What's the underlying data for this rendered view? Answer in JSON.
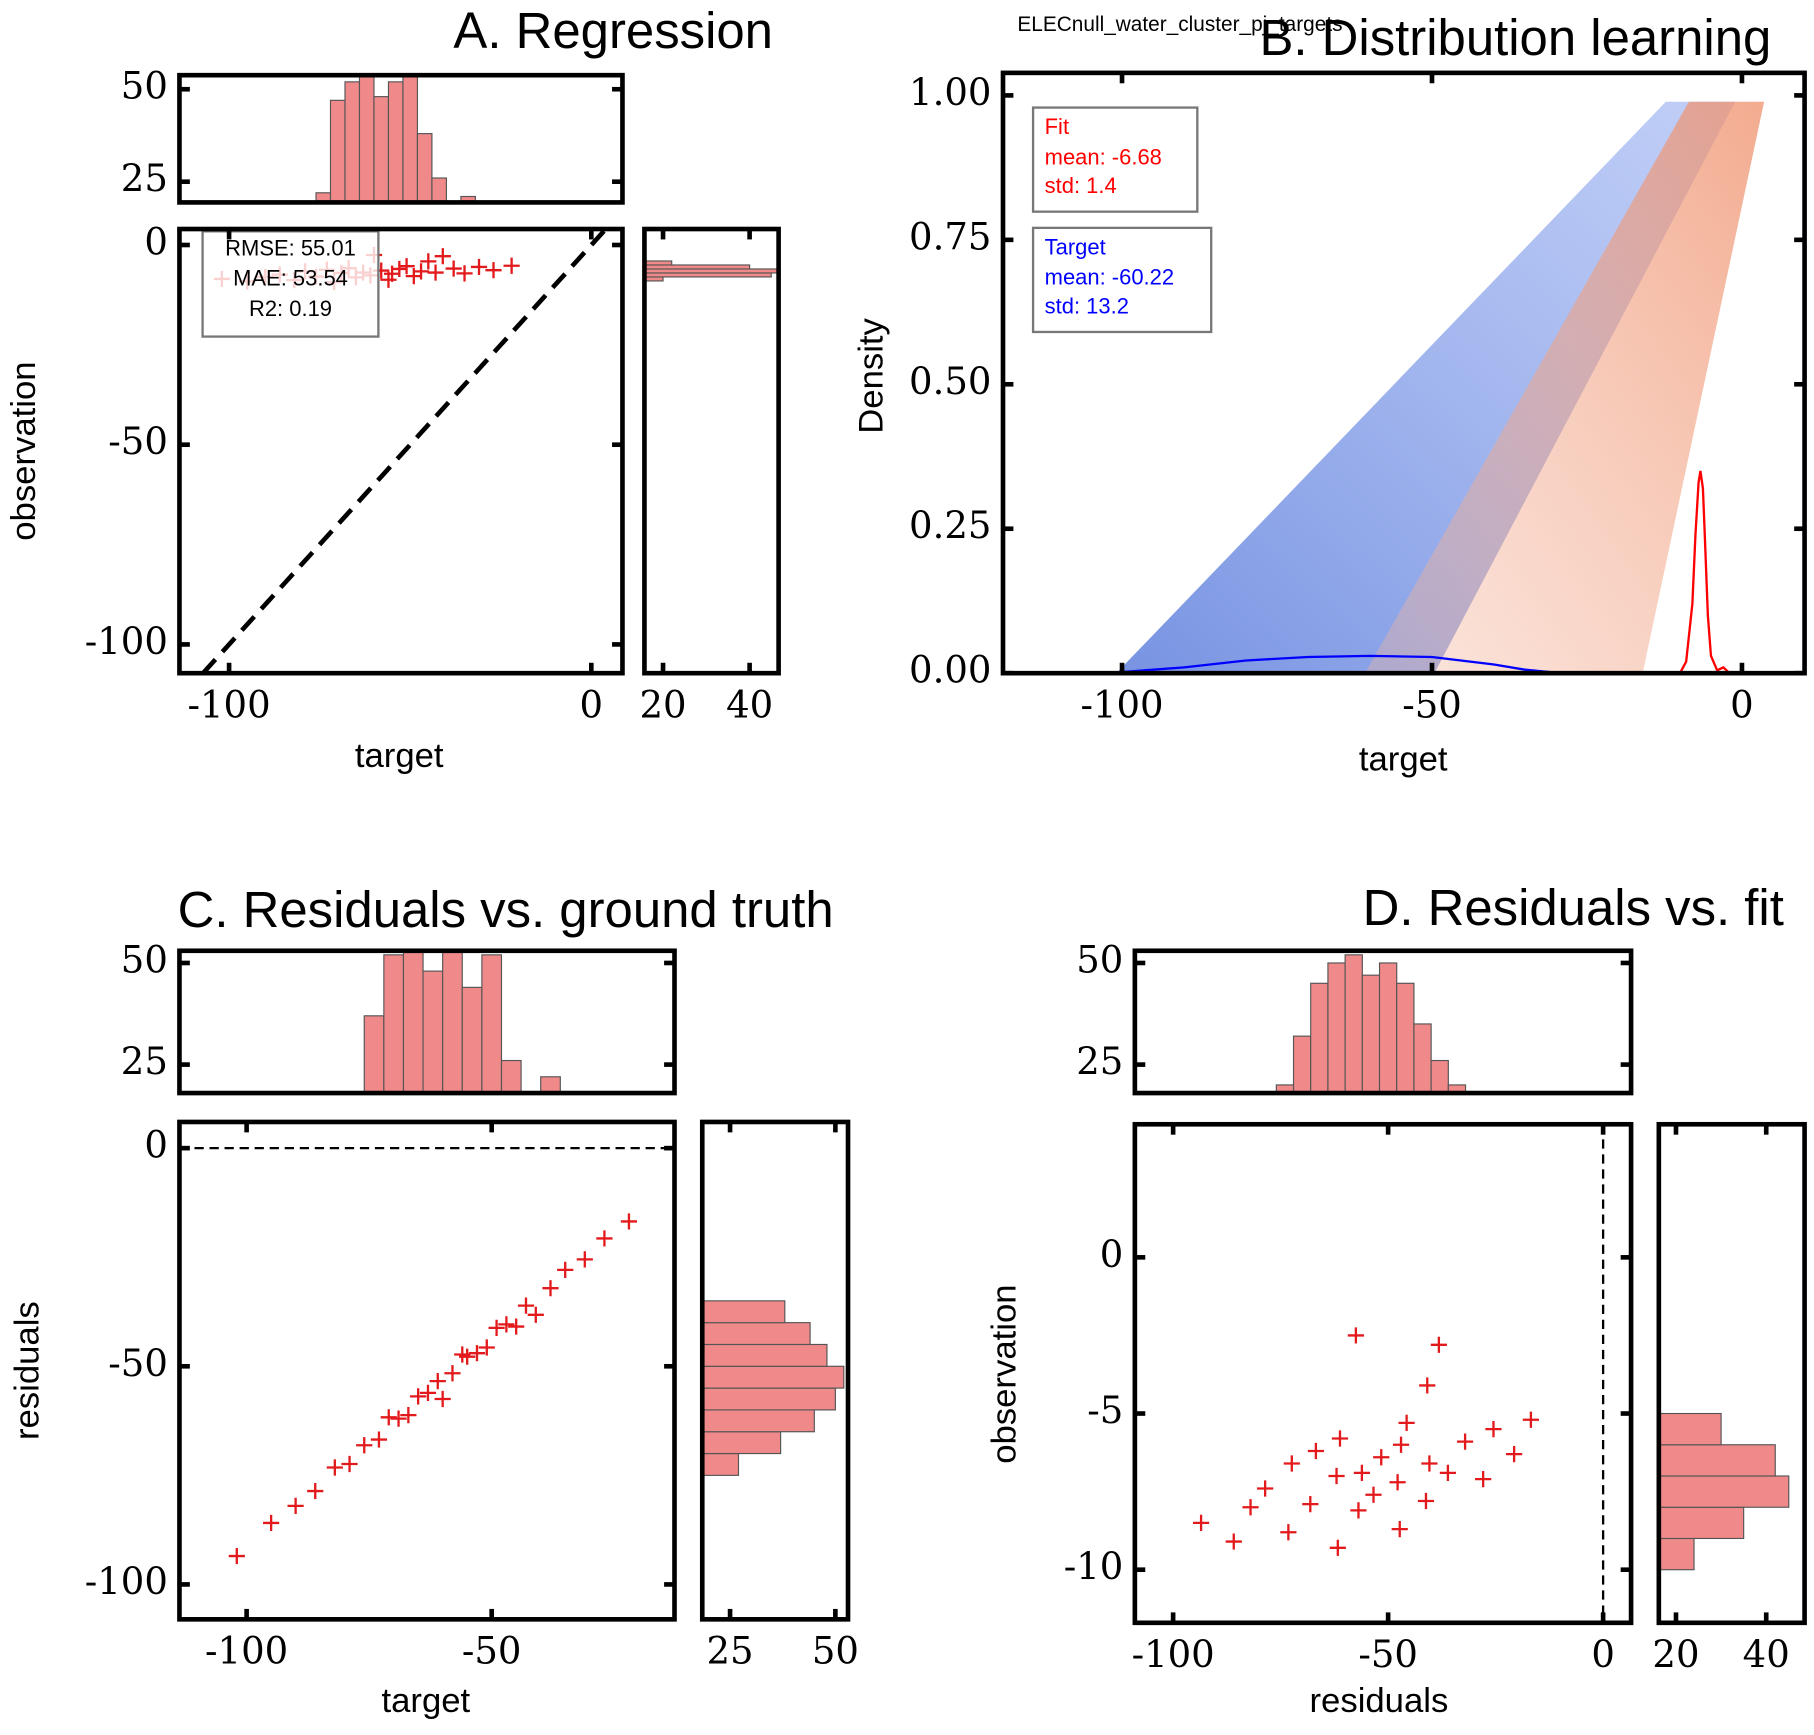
{
  "suptitle": "ELECnull_water_cluster_pj_targets",
  "chart_data": [
    {
      "type": "scatter",
      "title": "A. Regression",
      "xlabel": "target",
      "ylabel": "observation",
      "xlim": [
        -113.7,
        8.6
      ],
      "ylim": [
        -107.2,
        4
      ],
      "xticks": [
        -100,
        0
      ],
      "yticks": [
        -100,
        -50,
        0
      ],
      "color": "#e31a1c",
      "hist_color": "#f08a8a",
      "reference_line": "identity",
      "annotation": [
        "RMSE: 55.01",
        "MAE: 53.54",
        "R2: 0.19"
      ],
      "x": [
        -102,
        -95,
        -90,
        -86,
        -82,
        -79,
        -76,
        -73,
        -71,
        -69,
        -67,
        -65,
        -63,
        -61,
        -60,
        -58,
        -56,
        -55,
        -53,
        -51,
        -49,
        -47,
        -45,
        -43,
        -41,
        -38,
        -35,
        -31,
        -27,
        -22
      ],
      "y": [
        -8.5,
        -9.1,
        -8.0,
        -7.4,
        -8.8,
        -6.6,
        -7.9,
        -6.2,
        -9.3,
        -7.0,
        -5.8,
        -8.1,
        -6.9,
        -7.6,
        -2.5,
        -6.4,
        -8.7,
        -7.2,
        -6.0,
        -5.3,
        -7.8,
        -6.6,
        -4.1,
        -6.9,
        -2.8,
        -5.9,
        -7.1,
        -5.5,
        -6.3,
        -5.2
      ],
      "top_hist": {
        "bins": [
          -76,
          -72,
          -68,
          -64,
          -60,
          -56,
          -52,
          -48,
          -44,
          -40,
          -36,
          -32
        ],
        "counts": [
          22,
          47,
          52,
          55,
          48,
          52,
          55,
          38,
          26,
          17,
          21
        ],
        "ylim": [
          19.4,
          53.8
        ],
        "yticks": [
          25,
          50
        ]
      },
      "right_hist": {
        "bins": [
          -9,
          -8,
          -7,
          -6,
          -5,
          -4
        ],
        "counts": [
          20,
          45,
          50,
          40,
          22
        ],
        "xlim": [
          15.7,
          46.7
        ],
        "xticks": [
          20,
          40
        ]
      }
    },
    {
      "type": "line",
      "title": "B. Distribution learning",
      "xlabel": "target",
      "ylabel": "Density",
      "xlim": [
        -119.2,
        10.1
      ],
      "ylim": [
        0,
        1.039
      ],
      "xticks": [
        -100,
        -50,
        0
      ],
      "yticks": [
        {
          "value": 0,
          "label": "0.00"
        },
        {
          "value": 0.25,
          "label": "0.25"
        },
        {
          "value": 0.5,
          "label": "0.50"
        },
        {
          "value": 0.75,
          "label": "0.75"
        },
        {
          "value": 1,
          "label": "1.00"
        }
      ],
      "series": [
        {
          "name": "Fit",
          "color": "#ff0000",
          "stats": [
            "mean: -6.68",
            "std: 1.4"
          ],
          "x": [
            -10,
            -9,
            -8,
            -7.5,
            -7,
            -6.7,
            -6.3,
            -6,
            -5.5,
            -5,
            -4,
            -3,
            -2
          ],
          "values": [
            0,
            0.02,
            0.12,
            0.24,
            0.33,
            0.35,
            0.32,
            0.24,
            0.1,
            0.03,
            0.005,
            0.01,
            0
          ]
        },
        {
          "name": "Target",
          "color": "#0000ff",
          "stats": [
            "mean: -60.22",
            "std: 13.2"
          ],
          "x": [
            -100,
            -90,
            -80,
            -70,
            -60,
            -50,
            -40,
            -35,
            -30
          ],
          "values": [
            0.002,
            0.01,
            0.022,
            0.028,
            0.03,
            0.028,
            0.015,
            0.006,
            0.001
          ]
        }
      ]
    },
    {
      "type": "scatter",
      "title": "C. Residuals vs. ground truth",
      "xlabel": "target",
      "ylabel": "residuals",
      "xlim": [
        -113.7,
        -12.7
      ],
      "ylim": [
        -108,
        6
      ],
      "xticks": [
        -100,
        -50
      ],
      "yticks": [
        -100,
        -50,
        0
      ],
      "color": "#e31a1c",
      "hist_color": "#f08a8a",
      "reference_line": "horizontal",
      "x": [
        -102,
        -95,
        -90,
        -86,
        -82,
        -79,
        -76,
        -73,
        -71,
        -69,
        -67,
        -65,
        -63,
        -61,
        -60,
        -58,
        -56,
        -55,
        -53,
        -51,
        -49,
        -47,
        -45,
        -43,
        -41,
        -38,
        -35,
        -31,
        -27,
        -22
      ],
      "y": [
        -93.5,
        -85.9,
        -82,
        -78.6,
        -73.2,
        -72.4,
        -68.1,
        -66.8,
        -61.7,
        -62,
        -61.2,
        -56.9,
        -56.1,
        -53.4,
        -57.5,
        -51.6,
        -47.3,
        -47.8,
        -47,
        -45.7,
        -41.2,
        -40.4,
        -40.9,
        -36.1,
        -38.2,
        -32.1,
        -27.9,
        -25.5,
        -20.7,
        -16.8
      ],
      "top_hist": {
        "bins": [
          -76,
          -72,
          -68,
          -64,
          -60,
          -56,
          -52,
          -48,
          -44,
          -40,
          -36
        ],
        "counts": [
          37,
          52,
          55,
          48,
          55,
          44,
          52,
          26,
          12,
          22
        ],
        "ylim": [
          18,
          53
        ],
        "yticks": [
          25,
          50
        ]
      },
      "right_hist": {
        "bins": [
          -75,
          -70,
          -65,
          -60,
          -55,
          -50,
          -45,
          -40,
          -35
        ],
        "counts": [
          27,
          37,
          45,
          50,
          52,
          48,
          44,
          38
        ],
        "xlim": [
          18.4,
          53
        ],
        "xticks": [
          25,
          50
        ]
      }
    },
    {
      "type": "scatter",
      "title": "D. Residuals vs. fit",
      "xlabel": "residuals",
      "ylabel": "observation",
      "xlim": [
        -108.9,
        6.5
      ],
      "ylim": [
        -11.7,
        4.26
      ],
      "xticks": [
        -100,
        -50,
        0
      ],
      "yticks": [
        -10,
        -5,
        0
      ],
      "color": "#e31a1c",
      "hist_color": "#f08a8a",
      "reference_line": "vertical",
      "x": [
        -93.5,
        -85.9,
        -82,
        -78.6,
        -73.2,
        -72.4,
        -68.1,
        -66.8,
        -61.7,
        -62,
        -61.2,
        -56.9,
        -56.1,
        -53.4,
        -57.5,
        -51.6,
        -47.3,
        -47.8,
        -47,
        -45.7,
        -41.2,
        -40.4,
        -40.9,
        -36.1,
        -38.2,
        -32.1,
        -27.9,
        -25.5,
        -20.7,
        -16.8
      ],
      "y": [
        -8.5,
        -9.1,
        -8.0,
        -7.4,
        -8.8,
        -6.6,
        -7.9,
        -6.2,
        -9.3,
        -7.0,
        -5.8,
        -8.1,
        -6.9,
        -7.6,
        -2.5,
        -6.4,
        -8.7,
        -7.2,
        -6.0,
        -5.3,
        -7.8,
        -6.6,
        -4.1,
        -6.9,
        -2.8,
        -5.9,
        -7.1,
        -5.5,
        -6.3,
        -5.2
      ],
      "top_hist": {
        "bins": [
          -76,
          -72,
          -68,
          -64,
          -60,
          -56,
          -52,
          -48,
          -44,
          -40,
          -36,
          -32
        ],
        "counts": [
          20,
          32,
          45,
          50,
          52,
          47,
          50,
          45,
          35,
          26,
          20
        ],
        "ylim": [
          18,
          53
        ],
        "yticks": [
          25,
          50
        ]
      },
      "right_hist": {
        "bins": [
          -10,
          -9,
          -8,
          -7,
          -6,
          -5
        ],
        "counts": [
          24,
          35,
          45,
          42,
          30
        ],
        "xlim": [
          16.2,
          48.5
        ],
        "xticks": [
          20,
          40
        ]
      }
    }
  ]
}
